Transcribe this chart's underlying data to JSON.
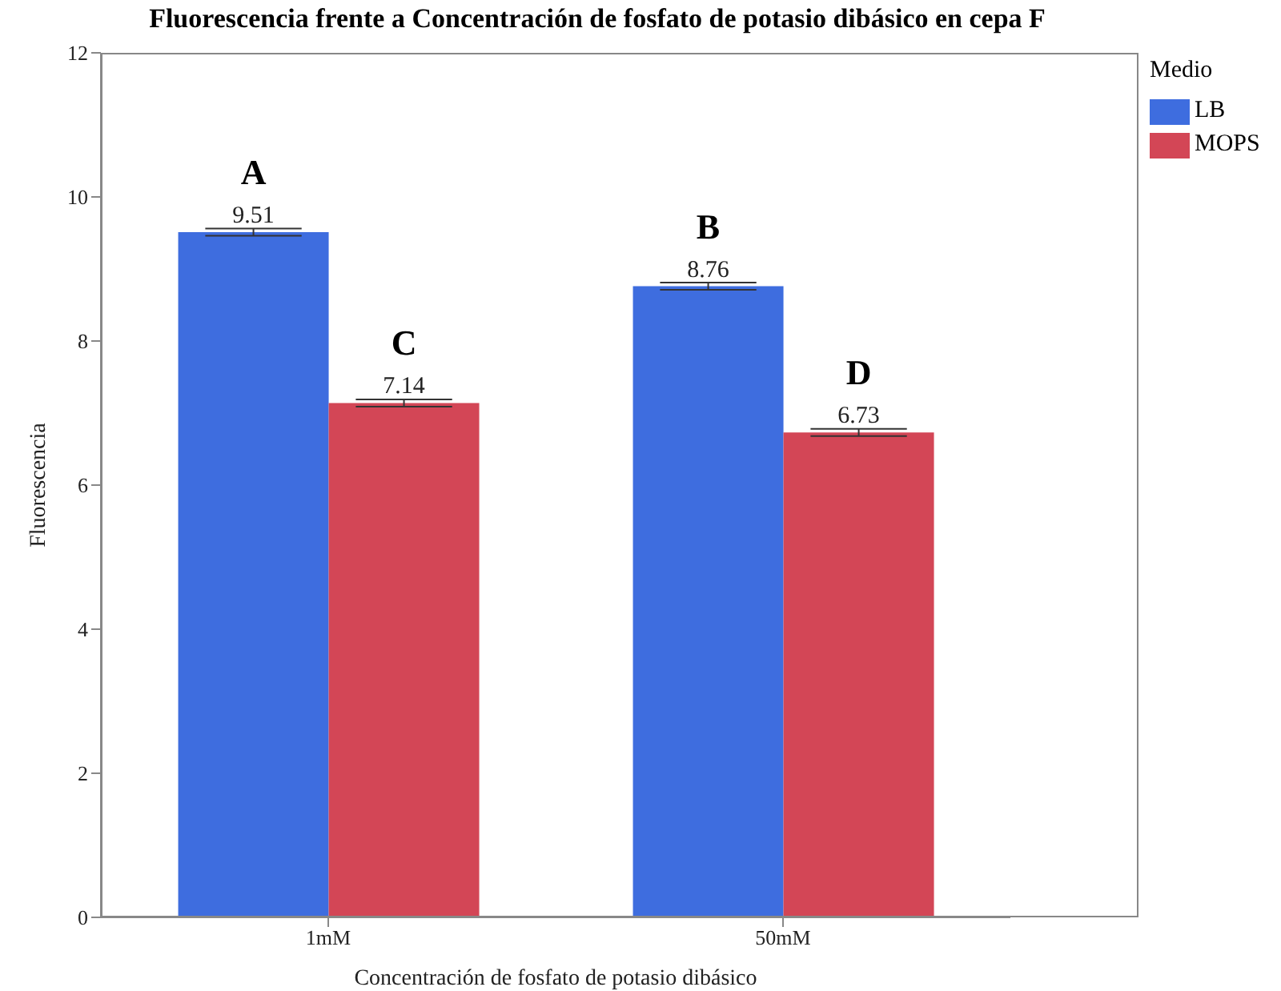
{
  "chart_data": {
    "type": "bar",
    "title": "Fluorescencia frente a Concentración de fosfato de potasio dibásico en cepa F",
    "xlabel": "Concentración de fosfato de potasio dibásico",
    "ylabel": "Fluorescencia",
    "legend_title": "Medio",
    "legend": "top right",
    "categories": [
      "1mM",
      "50mM"
    ],
    "series": [
      {
        "name": "LB",
        "color": "#3e6ddf",
        "values": [
          9.51,
          8.76
        ],
        "errors": [
          0.05,
          0.05
        ]
      },
      {
        "name": "MOPS",
        "color": "#d34656",
        "values": [
          7.14,
          6.73
        ],
        "errors": [
          0.05,
          0.05
        ]
      }
    ],
    "ylim": [
      0,
      12
    ],
    "yticks": [
      0,
      2,
      4,
      6,
      8,
      10,
      12
    ],
    "data_labels": true,
    "annotations": [
      {
        "text": "A",
        "x": "1mM",
        "y": 9.51
      },
      {
        "text": "C",
        "x": "1mM",
        "y": 7.14
      },
      {
        "text": "B",
        "x": "50mM",
        "y": 8.76
      },
      {
        "text": "D",
        "x": "50mM",
        "y": 6.73
      }
    ]
  }
}
